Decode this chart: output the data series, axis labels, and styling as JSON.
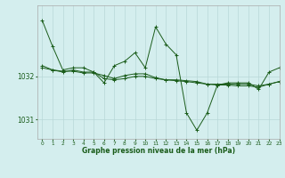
{
  "title": "Graphe pression niveau de la mer (hPa)",
  "background_color": "#d4eeee",
  "grid_color": "#b8d8d8",
  "line_color": "#1a5c1a",
  "xlim": [
    -0.5,
    23
  ],
  "ylim": [
    1030.55,
    1033.65
  ],
  "yticks": [
    1031,
    1032
  ],
  "xticks": [
    0,
    1,
    2,
    3,
    4,
    5,
    6,
    7,
    8,
    9,
    10,
    11,
    12,
    13,
    14,
    15,
    16,
    17,
    18,
    19,
    20,
    21,
    22,
    23
  ],
  "series1_x": [
    0,
    1,
    2,
    3,
    4,
    5,
    6,
    7,
    8,
    9,
    10,
    11,
    12,
    13,
    14,
    15,
    16,
    17,
    18,
    19,
    20,
    21,
    22,
    23
  ],
  "series1_y": [
    1033.3,
    1032.7,
    1032.15,
    1032.2,
    1032.2,
    1032.1,
    1031.85,
    1032.25,
    1032.35,
    1032.55,
    1032.2,
    1033.15,
    1032.75,
    1032.5,
    1031.15,
    1030.75,
    1031.15,
    1031.8,
    1031.85,
    1031.85,
    1031.85,
    1031.7,
    1032.1,
    1032.2
  ],
  "series2_x": [
    0,
    1,
    2,
    3,
    4,
    5,
    6,
    7,
    8,
    9,
    10,
    11,
    12,
    13,
    14,
    15,
    16,
    17,
    18,
    19,
    20,
    21,
    22,
    23
  ],
  "series2_y": [
    1032.2,
    1032.15,
    1032.1,
    1032.15,
    1032.1,
    1032.1,
    1031.95,
    1031.92,
    1031.95,
    1032.0,
    1032.0,
    1031.95,
    1031.92,
    1031.9,
    1031.88,
    1031.85,
    1031.82,
    1031.8,
    1031.8,
    1031.78,
    1031.78,
    1031.75,
    1031.82,
    1031.88
  ],
  "series3_x": [
    0,
    1,
    2,
    3,
    4,
    5,
    6,
    7,
    8,
    9,
    10,
    11,
    12,
    13,
    14,
    15,
    16,
    17,
    18,
    19,
    20,
    21,
    22,
    23
  ],
  "series3_y": [
    1032.25,
    1032.15,
    1032.12,
    1032.12,
    1032.08,
    1032.08,
    1032.02,
    1031.95,
    1032.02,
    1032.06,
    1032.06,
    1031.97,
    1031.92,
    1031.92,
    1031.9,
    1031.88,
    1031.82,
    1031.82,
    1031.82,
    1031.82,
    1031.82,
    1031.78,
    1031.82,
    1031.88
  ]
}
